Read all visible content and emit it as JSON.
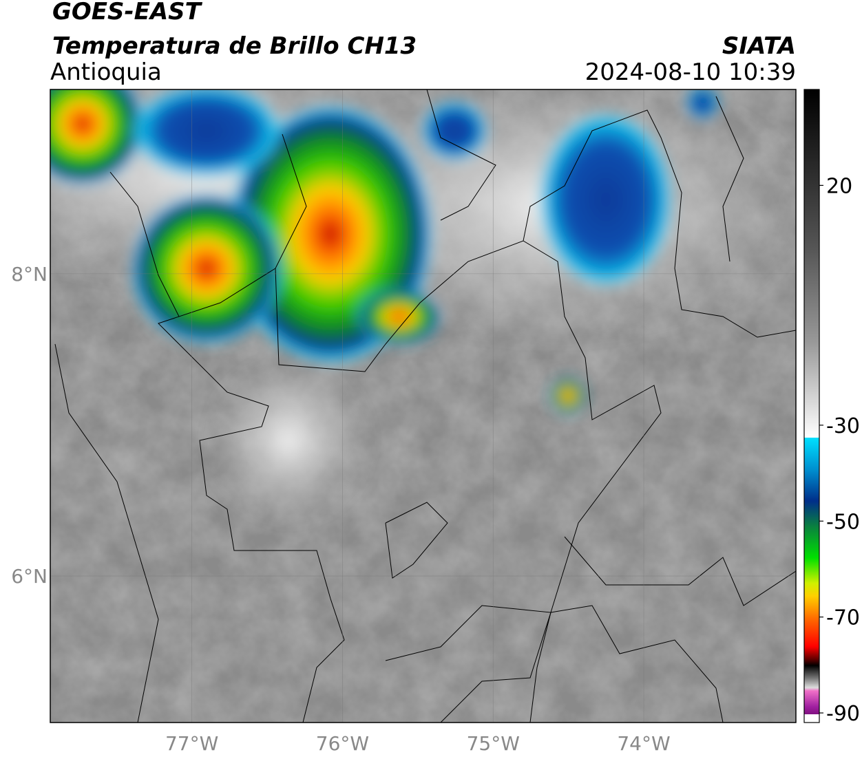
{
  "header": {
    "title": "GOES-EAST",
    "subtitle": "Temperatura de Brillo CH13",
    "region": "Antioquia",
    "source": "SIATA",
    "datetime": "2024-08-10 10:39"
  },
  "map": {
    "xlim": [
      -77.94,
      -72.99
    ],
    "ylim": [
      5.03,
      9.22
    ],
    "xticks": [
      {
        "value": -77,
        "label": "77°W"
      },
      {
        "value": -76,
        "label": "76°W"
      },
      {
        "value": -75,
        "label": "75°W"
      },
      {
        "value": -74,
        "label": "74°W"
      }
    ],
    "yticks": [
      {
        "value": 8,
        "label": "8°N"
      },
      {
        "value": 6,
        "label": "6°N"
      }
    ],
    "grid": true
  },
  "colorbar": {
    "lim": [
      -92,
      40
    ],
    "ticks": [
      20,
      -30,
      -50,
      -70,
      -90
    ]
  }
}
